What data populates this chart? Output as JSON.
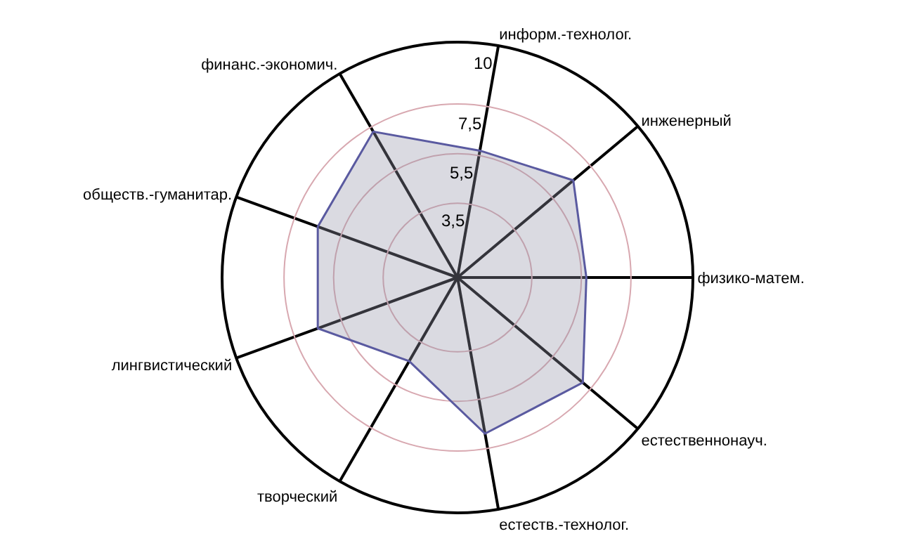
{
  "chart_data": {
    "type": "radar",
    "categories": [
      "информ.-технолог.",
      "инженерный",
      "физико-матем.",
      "естественнонауч.",
      "естеств.-технолог.",
      "творческий",
      "лингвистический",
      "обществ.-гуманитар.",
      "финанс.-экономич."
    ],
    "series": [
      {
        "color": "#5a5aa0",
        "values": [
          5.7,
          6.6,
          5.7,
          7.1,
          6.9,
          4.4,
          6.5,
          6.5,
          7.3
        ]
      }
    ],
    "ylim": [
      0.5,
      10
    ],
    "yticks": [
      {
        "value": 3.5,
        "label": "3,5"
      },
      {
        "value": 5.5,
        "label": "5,5"
      },
      {
        "value": 7.5,
        "label": "7,5"
      },
      10
    ],
    "grid": true
  }
}
